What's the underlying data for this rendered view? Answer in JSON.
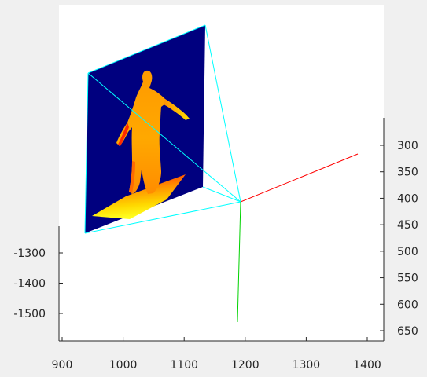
{
  "chart_data": {
    "type": "3d-scatter",
    "title": "",
    "axes": {
      "x": {
        "ticks": [
          900,
          1000,
          1100,
          1200,
          1300,
          1400
        ],
        "range": [
          900,
          1400
        ]
      },
      "y": {
        "ticks": [
          -1300,
          -1400,
          -1500
        ],
        "range": [
          -1500,
          -1300
        ]
      },
      "z": {
        "ticks": [
          300,
          350,
          400,
          450,
          500,
          550,
          600,
          650
        ],
        "range": [
          300,
          650
        ]
      }
    },
    "colors": {
      "depth_plane": "#00007f",
      "frustum_lines": "#00ffff",
      "axis_x_line": "#ff0000",
      "axis_y_line": "#00d200",
      "figure_gradient": [
        "#ff0000",
        "#ff7a00",
        "#ffa000",
        "#ffd200",
        "#ffff00"
      ]
    },
    "objects": [
      {
        "name": "depth-image-plane",
        "kind": "plane",
        "colormap": "jet"
      },
      {
        "name": "human-point-cloud",
        "kind": "point-cloud",
        "colormap": "jet"
      },
      {
        "name": "camera-frustum",
        "kind": "lines"
      },
      {
        "name": "coordinate-axes",
        "kind": "lines"
      }
    ]
  }
}
